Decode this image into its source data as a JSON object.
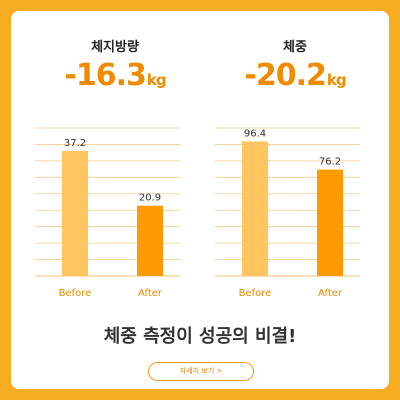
{
  "colors": {
    "background": "#f7ad22",
    "accent": "#f08a00",
    "before_bar": "#ffc561",
    "after_bar": "#ff9a00",
    "grid": "#f6c98c",
    "axis_label": "#e58a00"
  },
  "panels": [
    {
      "title": "체지방량",
      "value": "-16.3",
      "unit": "kg"
    },
    {
      "title": "체중",
      "value": "-20.2",
      "unit": "kg"
    }
  ],
  "headline": "체중 측정이 성공의 비결!",
  "cta_label": "자세히 보기 >",
  "chart_data": [
    {
      "type": "bar",
      "title": "체지방량",
      "categories": [
        "Before",
        "After"
      ],
      "values": [
        37.2,
        20.9
      ],
      "data_labels": [
        "37.2",
        "20.9"
      ],
      "ylim": [
        0,
        44
      ],
      "grid": true
    },
    {
      "type": "bar",
      "title": "체중",
      "categories": [
        "Before",
        "After"
      ],
      "values": [
        96.4,
        76.2
      ],
      "data_labels": [
        "96.4",
        "76.2"
      ],
      "ylim": [
        0,
        106
      ],
      "grid": true
    }
  ]
}
